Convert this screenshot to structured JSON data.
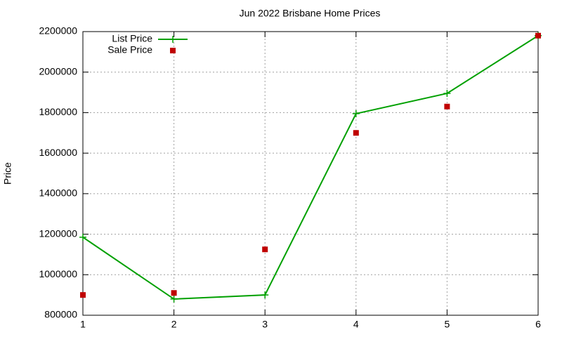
{
  "chart_data": {
    "type": "line",
    "title": "Jun 2022 Brisbane Home Prices",
    "y_label": "Price",
    "x": [
      1,
      2,
      3,
      4,
      5,
      6
    ],
    "series": [
      {
        "name": "List Price",
        "color": "#00a000",
        "style": "linespoints",
        "values": [
          1185000,
          880000,
          900000,
          1795000,
          1895000,
          2180000
        ]
      },
      {
        "name": "Sale Price",
        "color": "#c00000",
        "style": "points",
        "values": [
          900000,
          910000,
          1125000,
          1700000,
          1830000,
          2180000
        ]
      }
    ],
    "xlim": [
      1,
      6
    ],
    "xticks": [
      1,
      2,
      3,
      4,
      5,
      6
    ],
    "ylim": [
      800000,
      2200000
    ],
    "yticks": [
      800000,
      1000000,
      1200000,
      1400000,
      1600000,
      1800000,
      2000000,
      2200000
    ],
    "grid": true,
    "legend": "top-left"
  }
}
